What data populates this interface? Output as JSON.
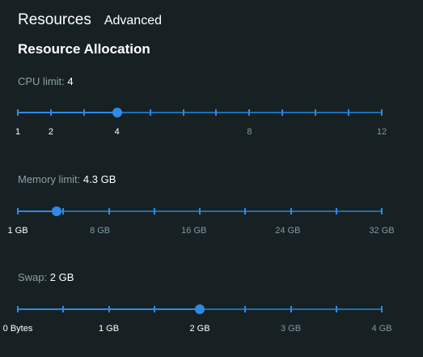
{
  "tabs": {
    "resources": "Resources",
    "advanced": "Advanced"
  },
  "section_title": "Resource Allocation",
  "colors": {
    "background": "#172124",
    "accent": "#2e8ae6",
    "rail": "#1e6fb0",
    "muted_text": "#8b9fa8"
  },
  "sliders": [
    {
      "id": "cpu",
      "label": "CPU limit:",
      "value_text": "4",
      "value_fraction": 0.2727,
      "ticks": 12,
      "marks": [
        {
          "label": "1",
          "fraction": 0.0,
          "active": true
        },
        {
          "label": "2",
          "fraction": 0.0909,
          "active": true
        },
        {
          "label": "4",
          "fraction": 0.2727,
          "active": true
        },
        {
          "label": "8",
          "fraction": 0.6364,
          "active": false
        },
        {
          "label": "12",
          "fraction": 1.0,
          "active": false
        }
      ]
    },
    {
      "id": "memory",
      "label": "Memory limit:",
      "value_text": "4.3 GB",
      "value_fraction": 0.1065,
      "ticks": 9,
      "marks": [
        {
          "label": "1 GB",
          "fraction": 0.0,
          "active": true
        },
        {
          "label": "8 GB",
          "fraction": 0.2258,
          "active": false
        },
        {
          "label": "16 GB",
          "fraction": 0.4839,
          "active": false
        },
        {
          "label": "24 GB",
          "fraction": 0.7419,
          "active": false
        },
        {
          "label": "32 GB",
          "fraction": 1.0,
          "active": false
        }
      ]
    },
    {
      "id": "swap",
      "label": "Swap:",
      "value_text": "2 GB",
      "value_fraction": 0.5,
      "ticks": 9,
      "marks": [
        {
          "label": "0 Bytes",
          "fraction": 0.0,
          "active": true
        },
        {
          "label": "1 GB",
          "fraction": 0.25,
          "active": true
        },
        {
          "label": "2 GB",
          "fraction": 0.5,
          "active": true
        },
        {
          "label": "3 GB",
          "fraction": 0.75,
          "active": false
        },
        {
          "label": "4 GB",
          "fraction": 1.0,
          "active": false
        }
      ]
    }
  ]
}
